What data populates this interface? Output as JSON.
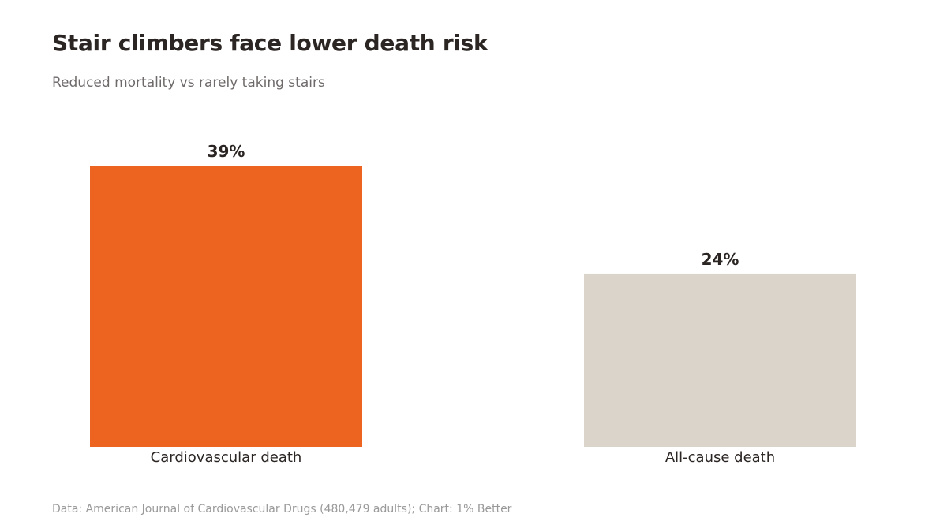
{
  "chart_data": {
    "type": "bar",
    "title": "Stair climbers face lower death risk",
    "subtitle": "Reduced mortality vs rarely taking stairs",
    "categories": [
      "Cardiovascular death",
      "All-cause death"
    ],
    "values": [
      39,
      24
    ],
    "value_labels": [
      "39%",
      "24%"
    ],
    "bar_colors": [
      "#ec641f",
      "#dbd4cb"
    ],
    "ylim": [
      0,
      39
    ],
    "grid": false,
    "source": "Data: American Journal of Cardiovascular Drugs (480,479 adults); Chart: 1% Better"
  }
}
